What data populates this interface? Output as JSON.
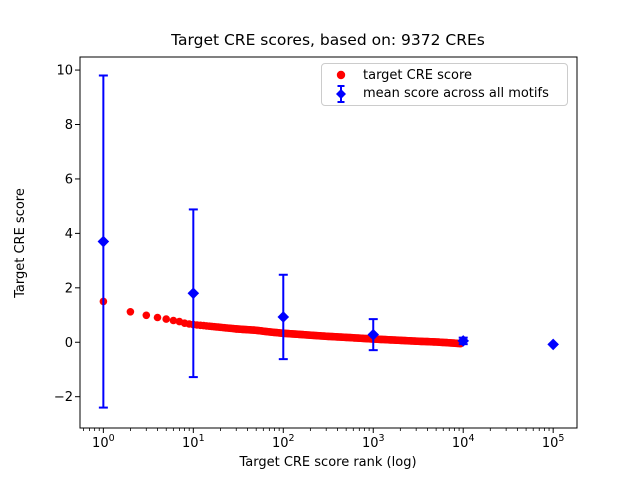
{
  "title": "Target CRE scores, based on: 9372 CREs",
  "colors": {
    "target_series": "#ff0000",
    "mean_series": "#0000ff",
    "axis": "#000000",
    "legend_border": "#cccccc",
    "background": "#ffffff"
  },
  "axes": {
    "xlabel": "Target CRE score rank (log)",
    "ylabel": "Target CRE score",
    "x_scale": "log",
    "x_tick_exponents": [
      0,
      1,
      2,
      3,
      4,
      5
    ],
    "x_tick_base": "10",
    "y_ticks": [
      {
        "value": -2,
        "label": "−2"
      },
      {
        "value": 0,
        "label": "0"
      },
      {
        "value": 2,
        "label": "2"
      },
      {
        "value": 4,
        "label": "4"
      },
      {
        "value": 6,
        "label": "6"
      },
      {
        "value": 8,
        "label": "8"
      },
      {
        "value": 10,
        "label": "10"
      }
    ]
  },
  "legend": {
    "position": "upper right",
    "items": [
      {
        "label": "target CRE score",
        "marker": "circle",
        "color": "#ff0000"
      },
      {
        "label": "mean score across all motifs",
        "marker": "diamond_errorbar",
        "color": "#0000ff"
      }
    ]
  },
  "chart_data": {
    "type": "scatter",
    "title": "Target CRE scores, based on: 9372 CREs",
    "xlabel": "Target CRE score rank (log)",
    "ylabel": "Target CRE score",
    "x_scale": "log",
    "xlim": [
      0.55,
      184000
    ],
    "ylim": [
      -3.15,
      10.48
    ],
    "grid": false,
    "n_cres": 9372,
    "series": [
      {
        "name": "target CRE score",
        "marker": "circle",
        "color": "#ff0000",
        "dense_integer_ranks": true,
        "max_rank": 9372,
        "points": [
          [
            1,
            1.5
          ],
          [
            2,
            1.12
          ],
          [
            3,
            0.99
          ],
          [
            4,
            0.91
          ],
          [
            5,
            0.85
          ],
          [
            6,
            0.8
          ],
          [
            7,
            0.76
          ],
          [
            8,
            0.7
          ],
          [
            9,
            0.67
          ],
          [
            10,
            0.65
          ],
          [
            15,
            0.59
          ],
          [
            20,
            0.55
          ],
          [
            30,
            0.49
          ],
          [
            50,
            0.44
          ],
          [
            70,
            0.38
          ],
          [
            100,
            0.33
          ],
          [
            150,
            0.29
          ],
          [
            200,
            0.26
          ],
          [
            300,
            0.22
          ],
          [
            500,
            0.18
          ],
          [
            700,
            0.15
          ],
          [
            1000,
            0.12
          ],
          [
            1500,
            0.09
          ],
          [
            2000,
            0.07
          ],
          [
            3000,
            0.04
          ],
          [
            5000,
            0.01
          ],
          [
            7000,
            -0.02
          ],
          [
            9372,
            -0.05
          ]
        ]
      },
      {
        "name": "mean score across all motifs",
        "marker": "diamond",
        "color": "#0000ff",
        "points": [
          [
            1,
            3.7
          ],
          [
            10,
            1.8
          ],
          [
            100,
            0.93
          ],
          [
            1000,
            0.28
          ],
          [
            10000,
            0.05
          ],
          [
            100000,
            -0.08
          ]
        ],
        "yerr": [
          6.1,
          3.08,
          1.55,
          0.57,
          0.12,
          0.0
        ]
      }
    ]
  }
}
